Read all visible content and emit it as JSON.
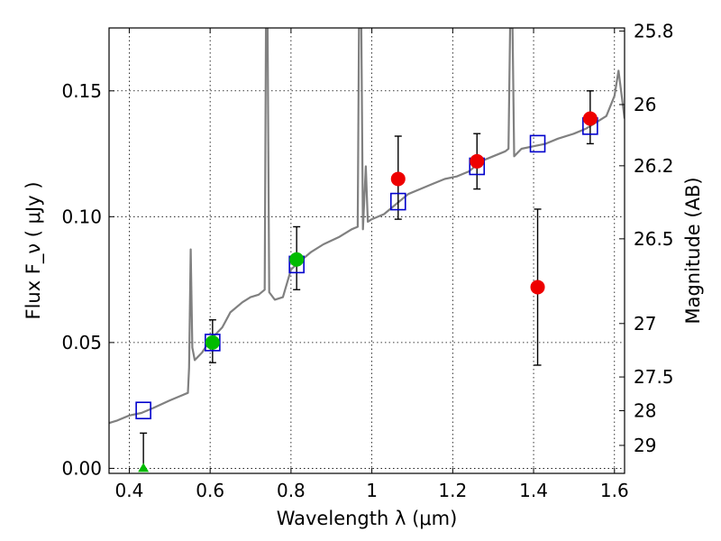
{
  "chart_data": {
    "type": "scatter",
    "xlabel": "Wavelength  λ (μm)",
    "ylabel": "Flux  F_ν  ( μJy )",
    "ylabel_right": "Magnitude (AB)",
    "xlim": [
      0.35,
      1.625
    ],
    "ylim": [
      -0.002,
      0.175
    ],
    "grid": true,
    "x_ticks": [
      0.4,
      0.6,
      0.8,
      1.0,
      1.2,
      1.4,
      1.6
    ],
    "x_tick_labels": [
      "0.4",
      "0.6",
      "0.8",
      "1",
      "1.2",
      "1.4",
      "1.6"
    ],
    "y_ticks": [
      0.0,
      0.05,
      0.1,
      0.15
    ],
    "y_tick_labels": [
      "0.00",
      "0.05",
      "0.10",
      "0.15"
    ],
    "right_ticks": [
      {
        "mag": 25.8,
        "label": "25.8"
      },
      {
        "mag": 26.0,
        "label": "26"
      },
      {
        "mag": 26.2,
        "label": "26.2"
      },
      {
        "mag": 26.5,
        "label": "26.5"
      },
      {
        "mag": 27.0,
        "label": "27"
      },
      {
        "mag": 27.5,
        "label": "27.5"
      },
      {
        "mag": 28.0,
        "label": "28"
      },
      {
        "mag": 29.0,
        "label": "29"
      }
    ],
    "colors": {
      "model": "#808080",
      "model_photometry": "#0000cc",
      "green_points": "#00bb00",
      "red_points": "#ee0000",
      "errorbar": "#000000"
    },
    "model_spectrum": [
      [
        0.35,
        0.018
      ],
      [
        0.37,
        0.019
      ],
      [
        0.4,
        0.021
      ],
      [
        0.43,
        0.022
      ],
      [
        0.46,
        0.024
      ],
      [
        0.5,
        0.027
      ],
      [
        0.53,
        0.029
      ],
      [
        0.545,
        0.03
      ],
      [
        0.548,
        0.04
      ],
      [
        0.552,
        0.087
      ],
      [
        0.556,
        0.048
      ],
      [
        0.562,
        0.043
      ],
      [
        0.58,
        0.046
      ],
      [
        0.6,
        0.051
      ],
      [
        0.63,
        0.056
      ],
      [
        0.65,
        0.062
      ],
      [
        0.68,
        0.066
      ],
      [
        0.7,
        0.068
      ],
      [
        0.72,
        0.069
      ],
      [
        0.735,
        0.071
      ],
      [
        0.738,
        0.175
      ],
      [
        0.742,
        0.175
      ],
      [
        0.746,
        0.07
      ],
      [
        0.76,
        0.067
      ],
      [
        0.78,
        0.068
      ],
      [
        0.8,
        0.079
      ],
      [
        0.82,
        0.082
      ],
      [
        0.85,
        0.086
      ],
      [
        0.88,
        0.089
      ],
      [
        0.92,
        0.092
      ],
      [
        0.95,
        0.095
      ],
      [
        0.965,
        0.096
      ],
      [
        0.968,
        0.175
      ],
      [
        0.974,
        0.175
      ],
      [
        0.978,
        0.095
      ],
      [
        0.985,
        0.12
      ],
      [
        0.99,
        0.098
      ],
      [
        1.0,
        0.099
      ],
      [
        1.03,
        0.101
      ],
      [
        1.06,
        0.105
      ],
      [
        1.09,
        0.109
      ],
      [
        1.12,
        0.111
      ],
      [
        1.15,
        0.113
      ],
      [
        1.18,
        0.115
      ],
      [
        1.21,
        0.116
      ],
      [
        1.24,
        0.118
      ],
      [
        1.27,
        0.122
      ],
      [
        1.3,
        0.124
      ],
      [
        1.33,
        0.126
      ],
      [
        1.338,
        0.127
      ],
      [
        1.342,
        0.175
      ],
      [
        1.348,
        0.175
      ],
      [
        1.352,
        0.124
      ],
      [
        1.37,
        0.127
      ],
      [
        1.4,
        0.128
      ],
      [
        1.43,
        0.129
      ],
      [
        1.46,
        0.131
      ],
      [
        1.5,
        0.133
      ],
      [
        1.53,
        0.135
      ],
      [
        1.56,
        0.138
      ],
      [
        1.58,
        0.14
      ],
      [
        1.6,
        0.148
      ],
      [
        1.61,
        0.158
      ],
      [
        1.625,
        0.139
      ]
    ],
    "model_photometry": [
      {
        "x": 0.435,
        "y": 0.023
      },
      {
        "x": 0.606,
        "y": 0.05
      },
      {
        "x": 0.814,
        "y": 0.081
      },
      {
        "x": 1.065,
        "y": 0.106
      },
      {
        "x": 1.26,
        "y": 0.12
      },
      {
        "x": 1.41,
        "y": 0.129
      },
      {
        "x": 1.54,
        "y": 0.136
      }
    ],
    "observed_green": [
      {
        "x": 0.435,
        "y": 0.0,
        "err_low": 0.0,
        "err_high": 0.014,
        "marker": "triangle"
      },
      {
        "x": 0.606,
        "y": 0.05,
        "err_low": 0.008,
        "err_high": 0.009
      },
      {
        "x": 0.814,
        "y": 0.083,
        "err_low": 0.012,
        "err_high": 0.013
      }
    ],
    "observed_red": [
      {
        "x": 1.065,
        "y": 0.115,
        "err_low": 0.016,
        "err_high": 0.017
      },
      {
        "x": 1.26,
        "y": 0.122,
        "err_low": 0.011,
        "err_high": 0.011
      },
      {
        "x": 1.41,
        "y": 0.072,
        "err_low": 0.031,
        "err_high": 0.031
      },
      {
        "x": 1.54,
        "y": 0.139,
        "err_low": 0.01,
        "err_high": 0.011
      }
    ]
  }
}
